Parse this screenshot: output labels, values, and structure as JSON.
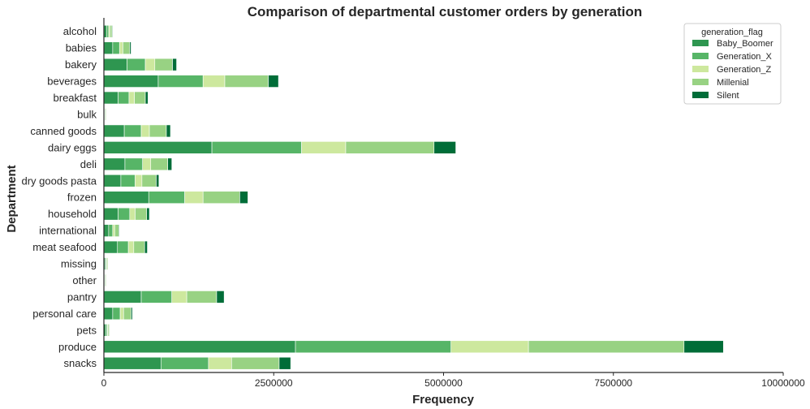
{
  "chart_data": {
    "type": "bar",
    "orientation": "horizontal",
    "stacked": true,
    "title": "Comparison of departmental customer orders by generation",
    "xlabel": "Frequency",
    "ylabel": "Department",
    "xlim": [
      0,
      10000000
    ],
    "xticks": [
      0,
      2500000,
      5000000,
      7500000,
      10000000
    ],
    "xtick_labels": [
      "0",
      "2500000",
      "5000000",
      "7500000",
      "10000000"
    ],
    "grid": false,
    "legend": {
      "title": "generation_flag",
      "position": "top-right"
    },
    "categories": [
      "alcohol",
      "babies",
      "bakery",
      "beverages",
      "breakfast",
      "bulk",
      "canned goods",
      "dairy eggs",
      "deli",
      "dry goods pasta",
      "frozen",
      "household",
      "international",
      "meat seafood",
      "missing",
      "other",
      "pantry",
      "personal care",
      "pets",
      "produce",
      "snacks"
    ],
    "series": [
      {
        "name": "Baby_Boomer",
        "color": "#2e9650",
        "values": [
          40000,
          130000,
          340000,
          800000,
          210000,
          10000,
          300000,
          1590000,
          310000,
          250000,
          660000,
          210000,
          70000,
          200000,
          20000,
          10000,
          550000,
          130000,
          30000,
          2820000,
          840000
        ]
      },
      {
        "name": "Generation_X",
        "color": "#57b567",
        "values": [
          30000,
          100000,
          270000,
          660000,
          160000,
          10000,
          250000,
          1320000,
          260000,
          210000,
          530000,
          170000,
          60000,
          160000,
          15000,
          10000,
          450000,
          110000,
          20000,
          2290000,
          700000
        ]
      },
      {
        "name": "Generation_Z",
        "color": "#cde89e",
        "values": [
          20000,
          50000,
          140000,
          320000,
          80000,
          10000,
          120000,
          650000,
          120000,
          100000,
          270000,
          80000,
          30000,
          80000,
          10000,
          10000,
          220000,
          50000,
          10000,
          1140000,
          340000
        ]
      },
      {
        "name": "Millenial",
        "color": "#98d283",
        "values": [
          30000,
          100000,
          260000,
          640000,
          160000,
          10000,
          250000,
          1300000,
          250000,
          210000,
          540000,
          170000,
          60000,
          160000,
          15000,
          10000,
          440000,
          110000,
          20000,
          2290000,
          700000
        ]
      },
      {
        "name": "Silent",
        "color": "#006d38",
        "values": [
          10000,
          20000,
          60000,
          150000,
          40000,
          5000,
          60000,
          320000,
          60000,
          40000,
          120000,
          40000,
          10000,
          40000,
          5000,
          5000,
          110000,
          20000,
          5000,
          580000,
          170000
        ]
      }
    ]
  }
}
